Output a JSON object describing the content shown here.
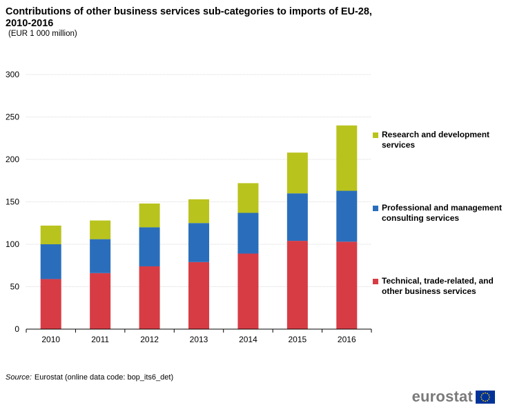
{
  "title": "Contributions of other business services sub-categories to imports of EU-28, 2010-2016",
  "subtitle": "(EUR 1 000 million)",
  "chart_data": {
    "type": "bar",
    "stacked": true,
    "title": "Contributions of other business services sub-categories to imports of EU-28, 2010-2016",
    "subtitle": "(EUR 1 000 million)",
    "xlabel": "",
    "ylabel": "",
    "ylim": [
      0,
      300
    ],
    "yticks": [
      0,
      50,
      100,
      150,
      200,
      250,
      300
    ],
    "grid": true,
    "legend_position": "right",
    "categories": [
      "2010",
      "2011",
      "2012",
      "2013",
      "2014",
      "2015",
      "2016"
    ],
    "series": [
      {
        "name": "Technical, trade-related, and other business services",
        "color": "#d73c45",
        "values": [
          59,
          66,
          74,
          79,
          89,
          104,
          103
        ]
      },
      {
        "name": "Professional and management consulting services",
        "color": "#2a6ebb",
        "values": [
          41,
          40,
          46,
          46,
          48,
          56,
          60
        ]
      },
      {
        "name": "Research and development services",
        "color": "#b9c31d",
        "values": [
          22,
          22,
          28,
          28,
          35,
          48,
          77
        ]
      }
    ]
  },
  "legend": {
    "items": [
      {
        "label": "Research and development services",
        "color": "#b9c31d"
      },
      {
        "label": "Professional and management consulting services",
        "color": "#2a6ebb"
      },
      {
        "label": "Technical, trade-related, and other business services",
        "color": "#d73c45"
      }
    ]
  },
  "source": {
    "label": "Source:",
    "text": "Eurostat (online data code: bop_its6_det)"
  },
  "logo": {
    "text": "eurostat",
    "flag_color": "#003399",
    "star_color": "#ffcc00"
  }
}
